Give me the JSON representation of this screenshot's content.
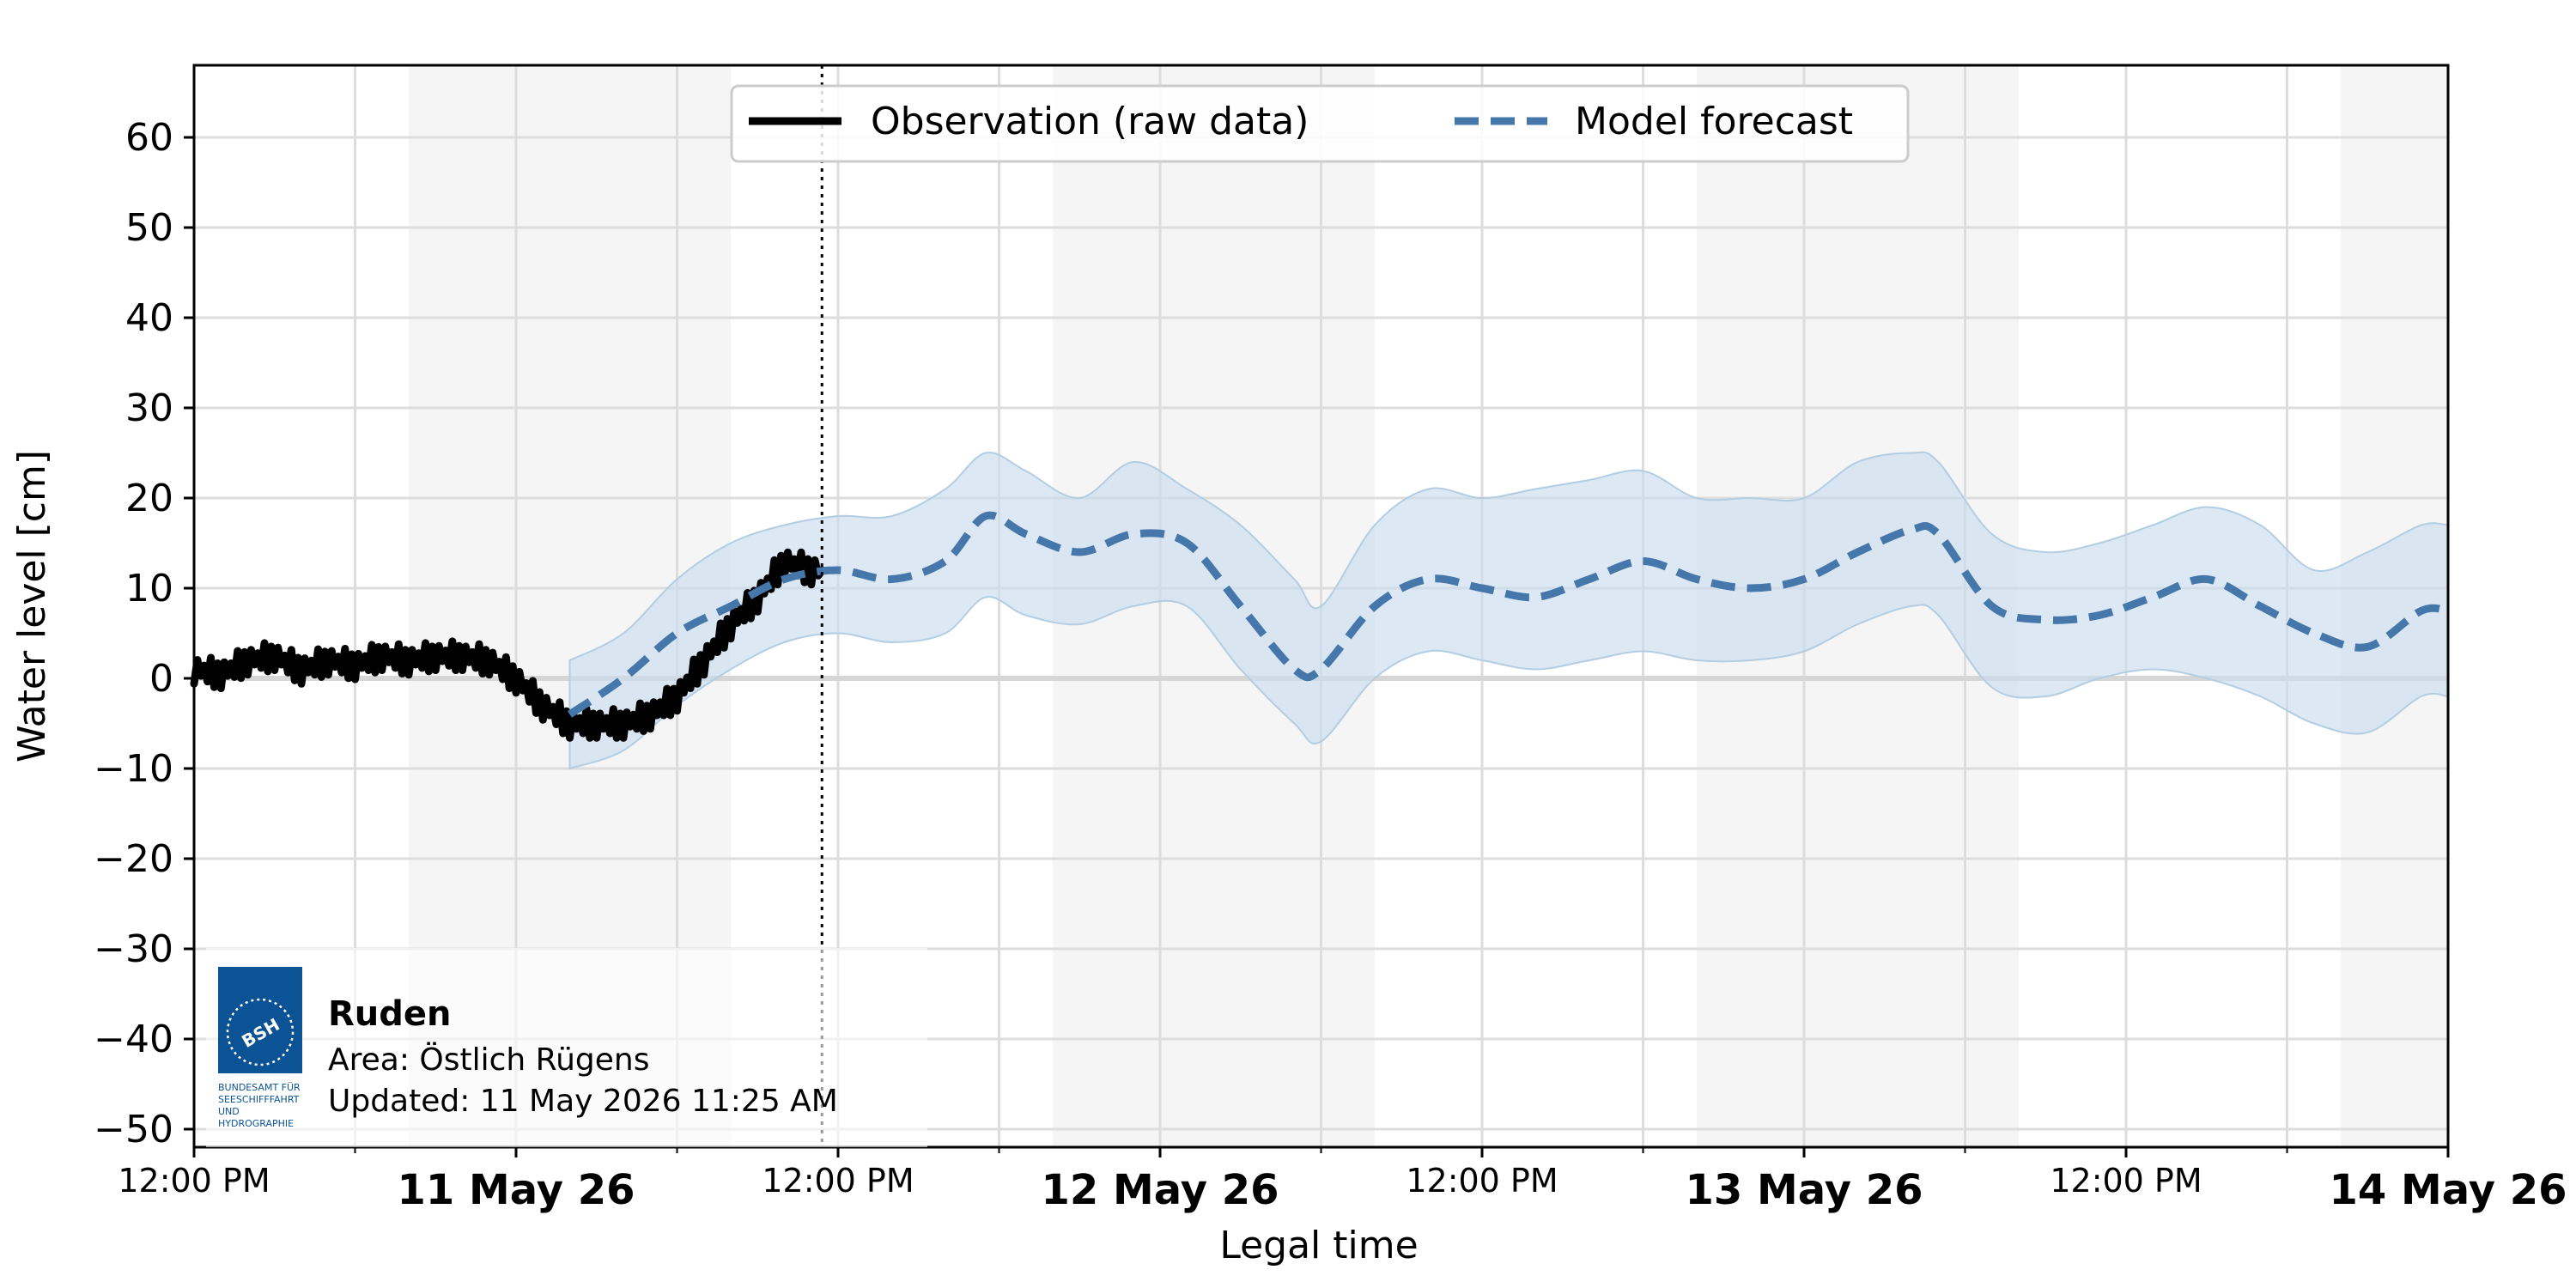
{
  "chart_data": {
    "type": "line",
    "ylabel": "Water level [cm]",
    "xlabel": "Legal time",
    "ylim": [
      -52,
      68
    ],
    "yticks": [
      60,
      50,
      40,
      30,
      20,
      10,
      0,
      -10,
      -20,
      -30,
      -40,
      -50
    ],
    "ytick_labels": [
      "60",
      "50",
      "40",
      "30",
      "20",
      "10",
      "0",
      "−10",
      "−20",
      "−30",
      "−40",
      "−50"
    ],
    "xlim_hours": [
      -12,
      72
    ],
    "xticks": [
      {
        "hour": -12,
        "label": "12:00 PM",
        "bold": false
      },
      {
        "hour": 0,
        "label": "11 May 26",
        "bold": true
      },
      {
        "hour": 12,
        "label": "12:00 PM",
        "bold": false
      },
      {
        "hour": 24,
        "label": "12 May 26",
        "bold": true
      },
      {
        "hour": 36,
        "label": "12:00 PM",
        "bold": false
      },
      {
        "hour": 48,
        "label": "13 May 26",
        "bold": true
      },
      {
        "hour": 60,
        "label": "12:00 PM",
        "bold": false
      },
      {
        "hour": 72,
        "label": "14 May 26",
        "bold": true
      }
    ],
    "minor_xticks_hours": [
      -6,
      6,
      18,
      30,
      42,
      54,
      66
    ],
    "night_bands_hours": [
      [
        -4,
        8
      ],
      [
        20,
        32
      ],
      [
        44,
        56
      ],
      [
        68,
        72
      ]
    ],
    "now_marker_hour": 11.4,
    "grid": true,
    "legend_placement": "top-center",
    "colors": {
      "observation": "#000000",
      "forecast": "#4677ab",
      "uncertainty": "#c9dcec",
      "uncertainty_edge": "#b3cde3",
      "night_band": "#f5f5f5",
      "grid": "#dddddd",
      "zero_line": "#d6d6d6"
    },
    "series": [
      {
        "name": "Observation (raw data)",
        "style": "solid",
        "x_hours": [
          -12,
          -11,
          -10,
          -9,
          -8,
          -7,
          -6,
          -5,
          -4,
          -3,
          -2,
          -1,
          0,
          1,
          2,
          3,
          4,
          5,
          6,
          7,
          8,
          9,
          10,
          11,
          11.4
        ],
        "values": [
          1,
          0.5,
          2,
          2.5,
          1,
          2,
          1.5,
          2.5,
          2,
          2.5,
          2.5,
          2,
          0,
          -3,
          -5,
          -5,
          -5,
          -4,
          -2,
          2,
          6,
          9,
          13,
          12,
          12
        ]
      },
      {
        "name": "Model forecast",
        "style": "dashed",
        "x_hours": [
          2,
          4,
          6,
          8,
          10,
          12,
          14,
          16,
          17.5,
          19,
          21,
          23,
          25,
          27,
          29,
          30,
          32,
          34,
          36,
          38,
          40,
          42,
          44,
          46,
          48,
          50,
          52,
          53,
          55,
          57,
          59,
          61,
          63,
          65,
          67,
          69,
          71,
          72
        ],
        "values": [
          -4,
          0,
          5,
          8,
          11,
          12,
          11,
          13,
          18,
          16,
          14,
          16,
          15,
          8,
          1,
          1,
          8,
          11,
          10,
          9,
          11,
          13,
          11,
          10,
          11,
          14,
          16.5,
          16,
          8,
          6.5,
          7,
          9,
          11,
          8,
          5,
          3.5,
          7.5,
          7.5
        ]
      }
    ],
    "uncertainty_band": {
      "x_hours": [
        2,
        4,
        6,
        8,
        10,
        12,
        14,
        16,
        17.5,
        19,
        21,
        23,
        25,
        27,
        29,
        30,
        32,
        34,
        36,
        38,
        40,
        42,
        44,
        46,
        48,
        50,
        52,
        53,
        55,
        57,
        59,
        61,
        63,
        65,
        67,
        69,
        71,
        72
      ],
      "upper": [
        2,
        5,
        11,
        15,
        17,
        18,
        18,
        21,
        25,
        23,
        20,
        24,
        21,
        17,
        11,
        8,
        17,
        21,
        20,
        21,
        22,
        23,
        20,
        20,
        20,
        24,
        25,
        24,
        16,
        14,
        15,
        17,
        19,
        17,
        12,
        14,
        17,
        17
      ],
      "lower": [
        -10,
        -8,
        -3,
        1,
        4,
        5,
        4,
        5,
        9,
        7,
        6,
        8,
        8,
        1,
        -5,
        -7,
        0,
        3,
        2,
        1,
        2,
        3,
        2,
        2,
        3,
        6,
        8,
        7,
        -1,
        -2,
        0,
        1,
        0,
        -2,
        -5,
        -6,
        -2,
        -2
      ]
    }
  },
  "legend": {
    "observation_label": "Observation (raw data)",
    "forecast_label": "Model forecast"
  },
  "station": {
    "name": "Ruden",
    "area": "Area: Östlich Rügens",
    "updated": "Updated: 11 May 2026 11:25 AM"
  },
  "logo": {
    "abbr": "BSH",
    "caption_lines": [
      "BUNDESAMT FÜR",
      "SEESCHIFFFAHRT",
      "UND",
      "HYDROGRAPHIE"
    ],
    "color": "#0b5394"
  }
}
